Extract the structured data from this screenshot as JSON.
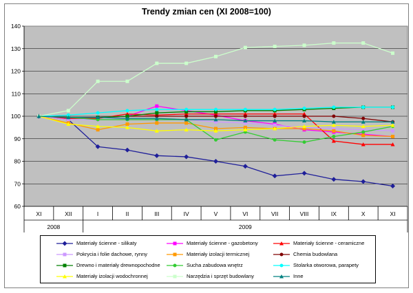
{
  "chart_data": {
    "type": "line",
    "title": "Trendy zmian cen (XI 2008=100)",
    "xlabel": "",
    "ylabel": "",
    "ylim": [
      60,
      140
    ],
    "yticks": [
      60,
      70,
      80,
      90,
      100,
      110,
      120,
      130,
      140
    ],
    "grid": true,
    "legend_position": "bottom",
    "categories": [
      "XI",
      "XII",
      "I",
      "II",
      "III",
      "IV",
      "V",
      "VI",
      "VII",
      "VIII",
      "IX",
      "X",
      "XI"
    ],
    "year_groups": [
      {
        "label": "2008",
        "from": 0,
        "to": 1
      },
      {
        "label": "2009",
        "from": 2,
        "to": 12
      }
    ],
    "series": [
      {
        "name": "Materiały ścienne - silikaty",
        "color": "#1f1f99",
        "marker": "diamond",
        "values": [
          100,
          98.5,
          86.5,
          85,
          82.5,
          82,
          80,
          77.8,
          73.5,
          74.7,
          72,
          71,
          69
        ]
      },
      {
        "name": "Materiały ścienne - gazobetony",
        "color": "#ff00ff",
        "marker": "square",
        "values": [
          100,
          99,
          99.5,
          100,
          104.5,
          102.5,
          100.5,
          98,
          96.5,
          94,
          93,
          92,
          91
        ]
      },
      {
        "name": "Materiały ścienne - ceramiczne",
        "color": "#ff0000",
        "marker": "triangle",
        "values": [
          100,
          99,
          99,
          101,
          100.5,
          101,
          101,
          101,
          101,
          101,
          89,
          87.5,
          87.5
        ]
      },
      {
        "name": "Pokrycia i folie dachowe, rynny",
        "color": "#cc99ff",
        "marker": "square",
        "values": [
          100,
          98.5,
          98.5,
          99,
          98.5,
          98.5,
          97.5,
          97,
          96,
          95,
          94.5,
          94,
          93.5
        ]
      },
      {
        "name": "Materiały izolacji termicznej",
        "color": "#ff9900",
        "marker": "square",
        "values": [
          100,
          97,
          94,
          96.5,
          97,
          97,
          94.5,
          95,
          94.5,
          94.5,
          93.5,
          91.5,
          91
        ]
      },
      {
        "name": "Chemia budowlana",
        "color": "#800000",
        "marker": "circle",
        "values": [
          100,
          99.5,
          99.5,
          100,
          100,
          100,
          100,
          100,
          100,
          100,
          100,
          99,
          97.5
        ]
      },
      {
        "name": "Drewno i materiały drewnopochodne",
        "color": "#008000",
        "marker": "square",
        "values": [
          100,
          99.5,
          99.5,
          100,
          101.5,
          102,
          102,
          102.5,
          102.5,
          103,
          103.5,
          104,
          104
        ]
      },
      {
        "name": "Sucha zabudowa wnętrz",
        "color": "#33cc33",
        "marker": "circle",
        "values": [
          100,
          99.5,
          98.5,
          98.5,
          98.5,
          98.5,
          89.5,
          93,
          89.5,
          88.5,
          91,
          93,
          95.5
        ]
      },
      {
        "name": "Stolarka otworowa, parapety",
        "color": "#00ffff",
        "marker": "circle",
        "values": [
          100,
          100.5,
          101.5,
          102.5,
          103,
          103,
          103,
          103,
          103,
          103.5,
          104,
          104,
          104
        ]
      },
      {
        "name": "Materiały izolacji wodochronnej",
        "color": "#ffff00",
        "marker": "triangle",
        "values": [
          100,
          96.5,
          95.5,
          95,
          93.5,
          94,
          93.5,
          94,
          94.5,
          95.5,
          96,
          95.5,
          96
        ]
      },
      {
        "name": "Narzędzia i sprzęt budowlany",
        "color": "#ccffcc",
        "marker": "square",
        "values": [
          100,
          102.5,
          115.5,
          115.5,
          123.5,
          123.5,
          126.5,
          130.5,
          131,
          131.5,
          132.5,
          132.5,
          128
        ]
      },
      {
        "name": "Inne",
        "color": "#008080",
        "marker": "triangle",
        "values": [
          100,
          99.5,
          99.5,
          99,
          99,
          98.5,
          98.5,
          98,
          98,
          98,
          97.5,
          97.5,
          97.5
        ]
      }
    ]
  }
}
